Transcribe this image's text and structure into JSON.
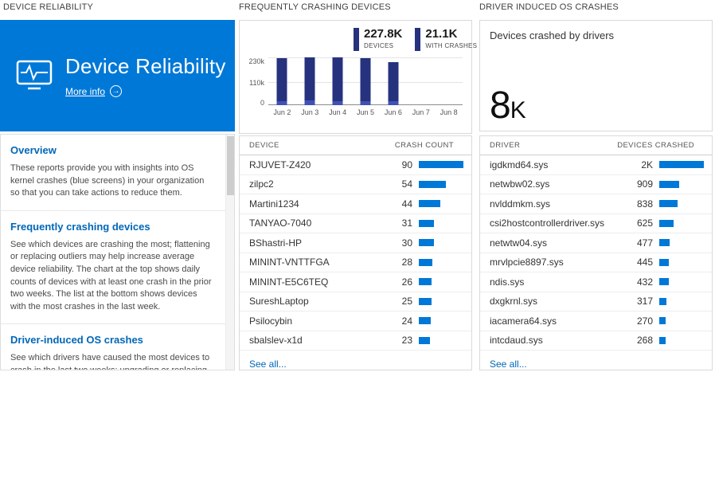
{
  "headers": {
    "left": "DEVICE RELIABILITY",
    "middle": "FREQUENTLY CRASHING DEVICES",
    "right": "DRIVER INDUCED OS CRASHES"
  },
  "tile": {
    "title": "Device Reliability",
    "more_info": "More info",
    "arrow_icon": "→"
  },
  "info_panel": {
    "sections": [
      {
        "heading": "Overview",
        "body": "These reports provide you with insights into OS kernel crashes (blue screens) in your organization so that you can take actions to reduce them."
      },
      {
        "heading": "Frequently crashing devices",
        "body": "See which devices are crashing the most; flattening or replacing outliers may help increase average device reliability. The chart at the top shows daily counts of devices with at least one crash in the prior two weeks. The list at the bottom shows devices with the most crashes in the last week."
      },
      {
        "heading": "Driver-induced OS crashes",
        "body": "See which drivers have caused the most devices to crash in the last two weeks; upgrading or replacing these drivers"
      }
    ]
  },
  "chart_data": {
    "type": "bar",
    "categories": [
      "Jun 2",
      "Jun 3",
      "Jun 4",
      "Jun 5",
      "Jun 6",
      "Jun 7",
      "Jun 8"
    ],
    "series": [
      {
        "name": "DEVICES",
        "values": [
          228000,
          230000,
          231000,
          228000,
          206000,
          0,
          0
        ]
      },
      {
        "name": "WITH CRASHES",
        "values": [
          21000,
          21500,
          21000,
          20500,
          18500,
          0,
          0
        ]
      }
    ],
    "ylim": [
      0,
      230000
    ],
    "yticks": [
      {
        "label": "0",
        "value": 0
      },
      {
        "label": "110k",
        "value": 110000
      },
      {
        "label": "230k",
        "value": 230000
      }
    ],
    "legend": [
      {
        "value": "227.8K",
        "label": "DEVICES"
      },
      {
        "value": "21.1K",
        "label": "WITH CRASHES"
      }
    ],
    "colors": {
      "devices": "#26327e",
      "with_crashes": "#3f51b5"
    }
  },
  "devices_table": {
    "headers": [
      "DEVICE",
      "CRASH COUNT"
    ],
    "rows": [
      {
        "name": "RJUVET-Z420",
        "count": "90",
        "value": 90
      },
      {
        "name": "zilpc2",
        "count": "54",
        "value": 54
      },
      {
        "name": "Martini1234",
        "count": "44",
        "value": 44
      },
      {
        "name": "TANYAO-7040",
        "count": "31",
        "value": 31
      },
      {
        "name": "BShastri-HP",
        "count": "30",
        "value": 30
      },
      {
        "name": "MININT-VNTTFGA",
        "count": "28",
        "value": 28
      },
      {
        "name": "MININT-E5C6TEQ",
        "count": "26",
        "value": 26
      },
      {
        "name": "SureshLaptop",
        "count": "25",
        "value": 25
      },
      {
        "name": "Psilocybin",
        "count": "24",
        "value": 24
      },
      {
        "name": "sbalslev-x1d",
        "count": "23",
        "value": 23
      }
    ],
    "see_all": "See all..."
  },
  "drivers_card": {
    "title": "Devices crashed by drivers",
    "value": "8",
    "unit": "K"
  },
  "drivers_table": {
    "headers": [
      "DRIVER",
      "DEVICES CRASHED"
    ],
    "rows": [
      {
        "name": "igdkmd64.sys",
        "count": "2K",
        "value": 2000
      },
      {
        "name": "netwbw02.sys",
        "count": "909",
        "value": 909
      },
      {
        "name": "nvlddmkm.sys",
        "count": "838",
        "value": 838
      },
      {
        "name": "csi2hostcontrollerdriver.sys",
        "count": "625",
        "value": 625
      },
      {
        "name": "netwtw04.sys",
        "count": "477",
        "value": 477
      },
      {
        "name": "mrvlpcie8897.sys",
        "count": "445",
        "value": 445
      },
      {
        "name": "ndis.sys",
        "count": "432",
        "value": 432
      },
      {
        "name": "dxgkrnl.sys",
        "count": "317",
        "value": 317
      },
      {
        "name": "iacamera64.sys",
        "count": "270",
        "value": 270
      },
      {
        "name": "intcdaud.sys",
        "count": "268",
        "value": 268
      }
    ],
    "see_all": "See all..."
  },
  "colors": {
    "accent": "#0078d7",
    "row_bar": "#0078d7",
    "link": "#0067b8"
  }
}
